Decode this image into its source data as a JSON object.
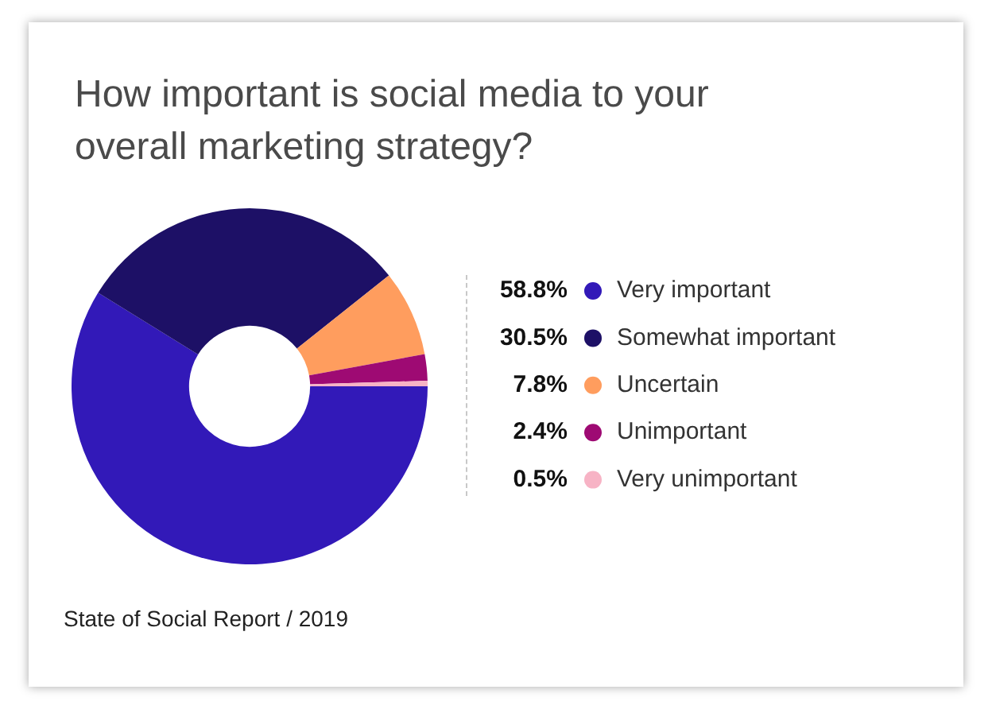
{
  "chart_data": {
    "type": "donut",
    "title": "How important is social media to your overall marketing strategy?",
    "categories": [
      "Very important",
      "Somewhat important",
      "Uncertain",
      "Unimportant",
      "Very unimportant"
    ],
    "values": [
      58.8,
      30.5,
      7.8,
      2.4,
      0.5
    ],
    "colors": [
      "#3219b8",
      "#1d1066",
      "#ff9d5e",
      "#9e0a73",
      "#f7b3c5"
    ],
    "value_labels": [
      "58.8%",
      "30.5%",
      "7.8%",
      "2.4%",
      "0.5%"
    ],
    "legend": "right",
    "annotations": [
      "State of Social Report / 2019"
    ]
  }
}
